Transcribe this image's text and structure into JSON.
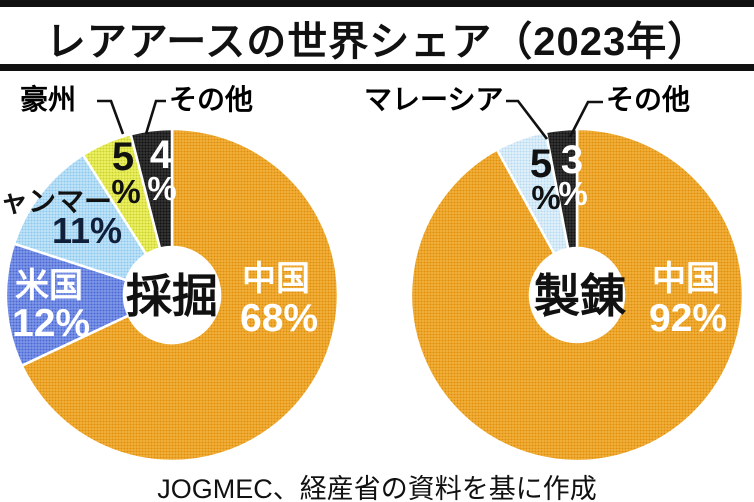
{
  "title": "レアアースの世界シェア（2023年）",
  "source": "JOGMEC、経産省の資料を基に作成",
  "pct_mark": "%",
  "chart_data": [
    {
      "type": "pie",
      "subtype": "donut",
      "center_label": "採掘",
      "start_angle_deg": 0,
      "direction": "clockwise",
      "legend_position": "on-slice-and-callouts",
      "categories": [
        "中国",
        "米国",
        "ミャンマー",
        "豪州",
        "その他"
      ],
      "values": [
        68,
        12,
        11,
        5,
        4
      ],
      "slices": [
        {
          "name": "中国",
          "value": 68,
          "pct": "68%",
          "dot": "#e08d0c",
          "light": "#f2b23c"
        },
        {
          "name": "米国",
          "value": 12,
          "pct": "12%",
          "dot": "#4a68d4",
          "light": "#8099e8"
        },
        {
          "name": "ミャンマー",
          "value": 11,
          "pct": "11%",
          "dot": "#8cc8ec",
          "light": "#c2e4f8"
        },
        {
          "name": "豪州",
          "value": 5,
          "pct": "5%",
          "dot": "#c9d22e",
          "light": "#eef164"
        },
        {
          "name": "その他",
          "value": 4,
          "pct": "4%",
          "dot": "#101010",
          "light": "#343434"
        }
      ]
    },
    {
      "type": "pie",
      "subtype": "donut",
      "center_label": "製錬",
      "start_angle_deg": 0,
      "direction": "clockwise",
      "legend_position": "on-slice-and-callouts",
      "categories": [
        "中国",
        "マレーシア",
        "その他"
      ],
      "values": [
        92,
        5,
        3
      ],
      "slices": [
        {
          "name": "中国",
          "value": 92,
          "pct": "92%",
          "dot": "#e08d0c",
          "light": "#f2b23c"
        },
        {
          "name": "マレーシア",
          "value": 5,
          "pct": "5%",
          "dot": "#b5daf0",
          "light": "#e3f1fb"
        },
        {
          "name": "その他",
          "value": 3,
          "pct": "3%",
          "dot": "#101010",
          "light": "#343434"
        }
      ]
    }
  ]
}
